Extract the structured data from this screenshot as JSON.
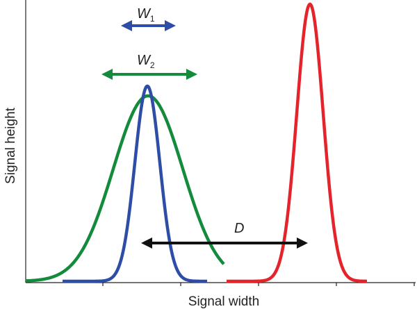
{
  "labels": {
    "w1": {
      "main": "W",
      "sub": "1"
    },
    "w2": {
      "main": "W",
      "sub": "2"
    },
    "d": "D"
  },
  "axes": {
    "x_label": "Signal width",
    "y_label": "Signal height"
  }
}
